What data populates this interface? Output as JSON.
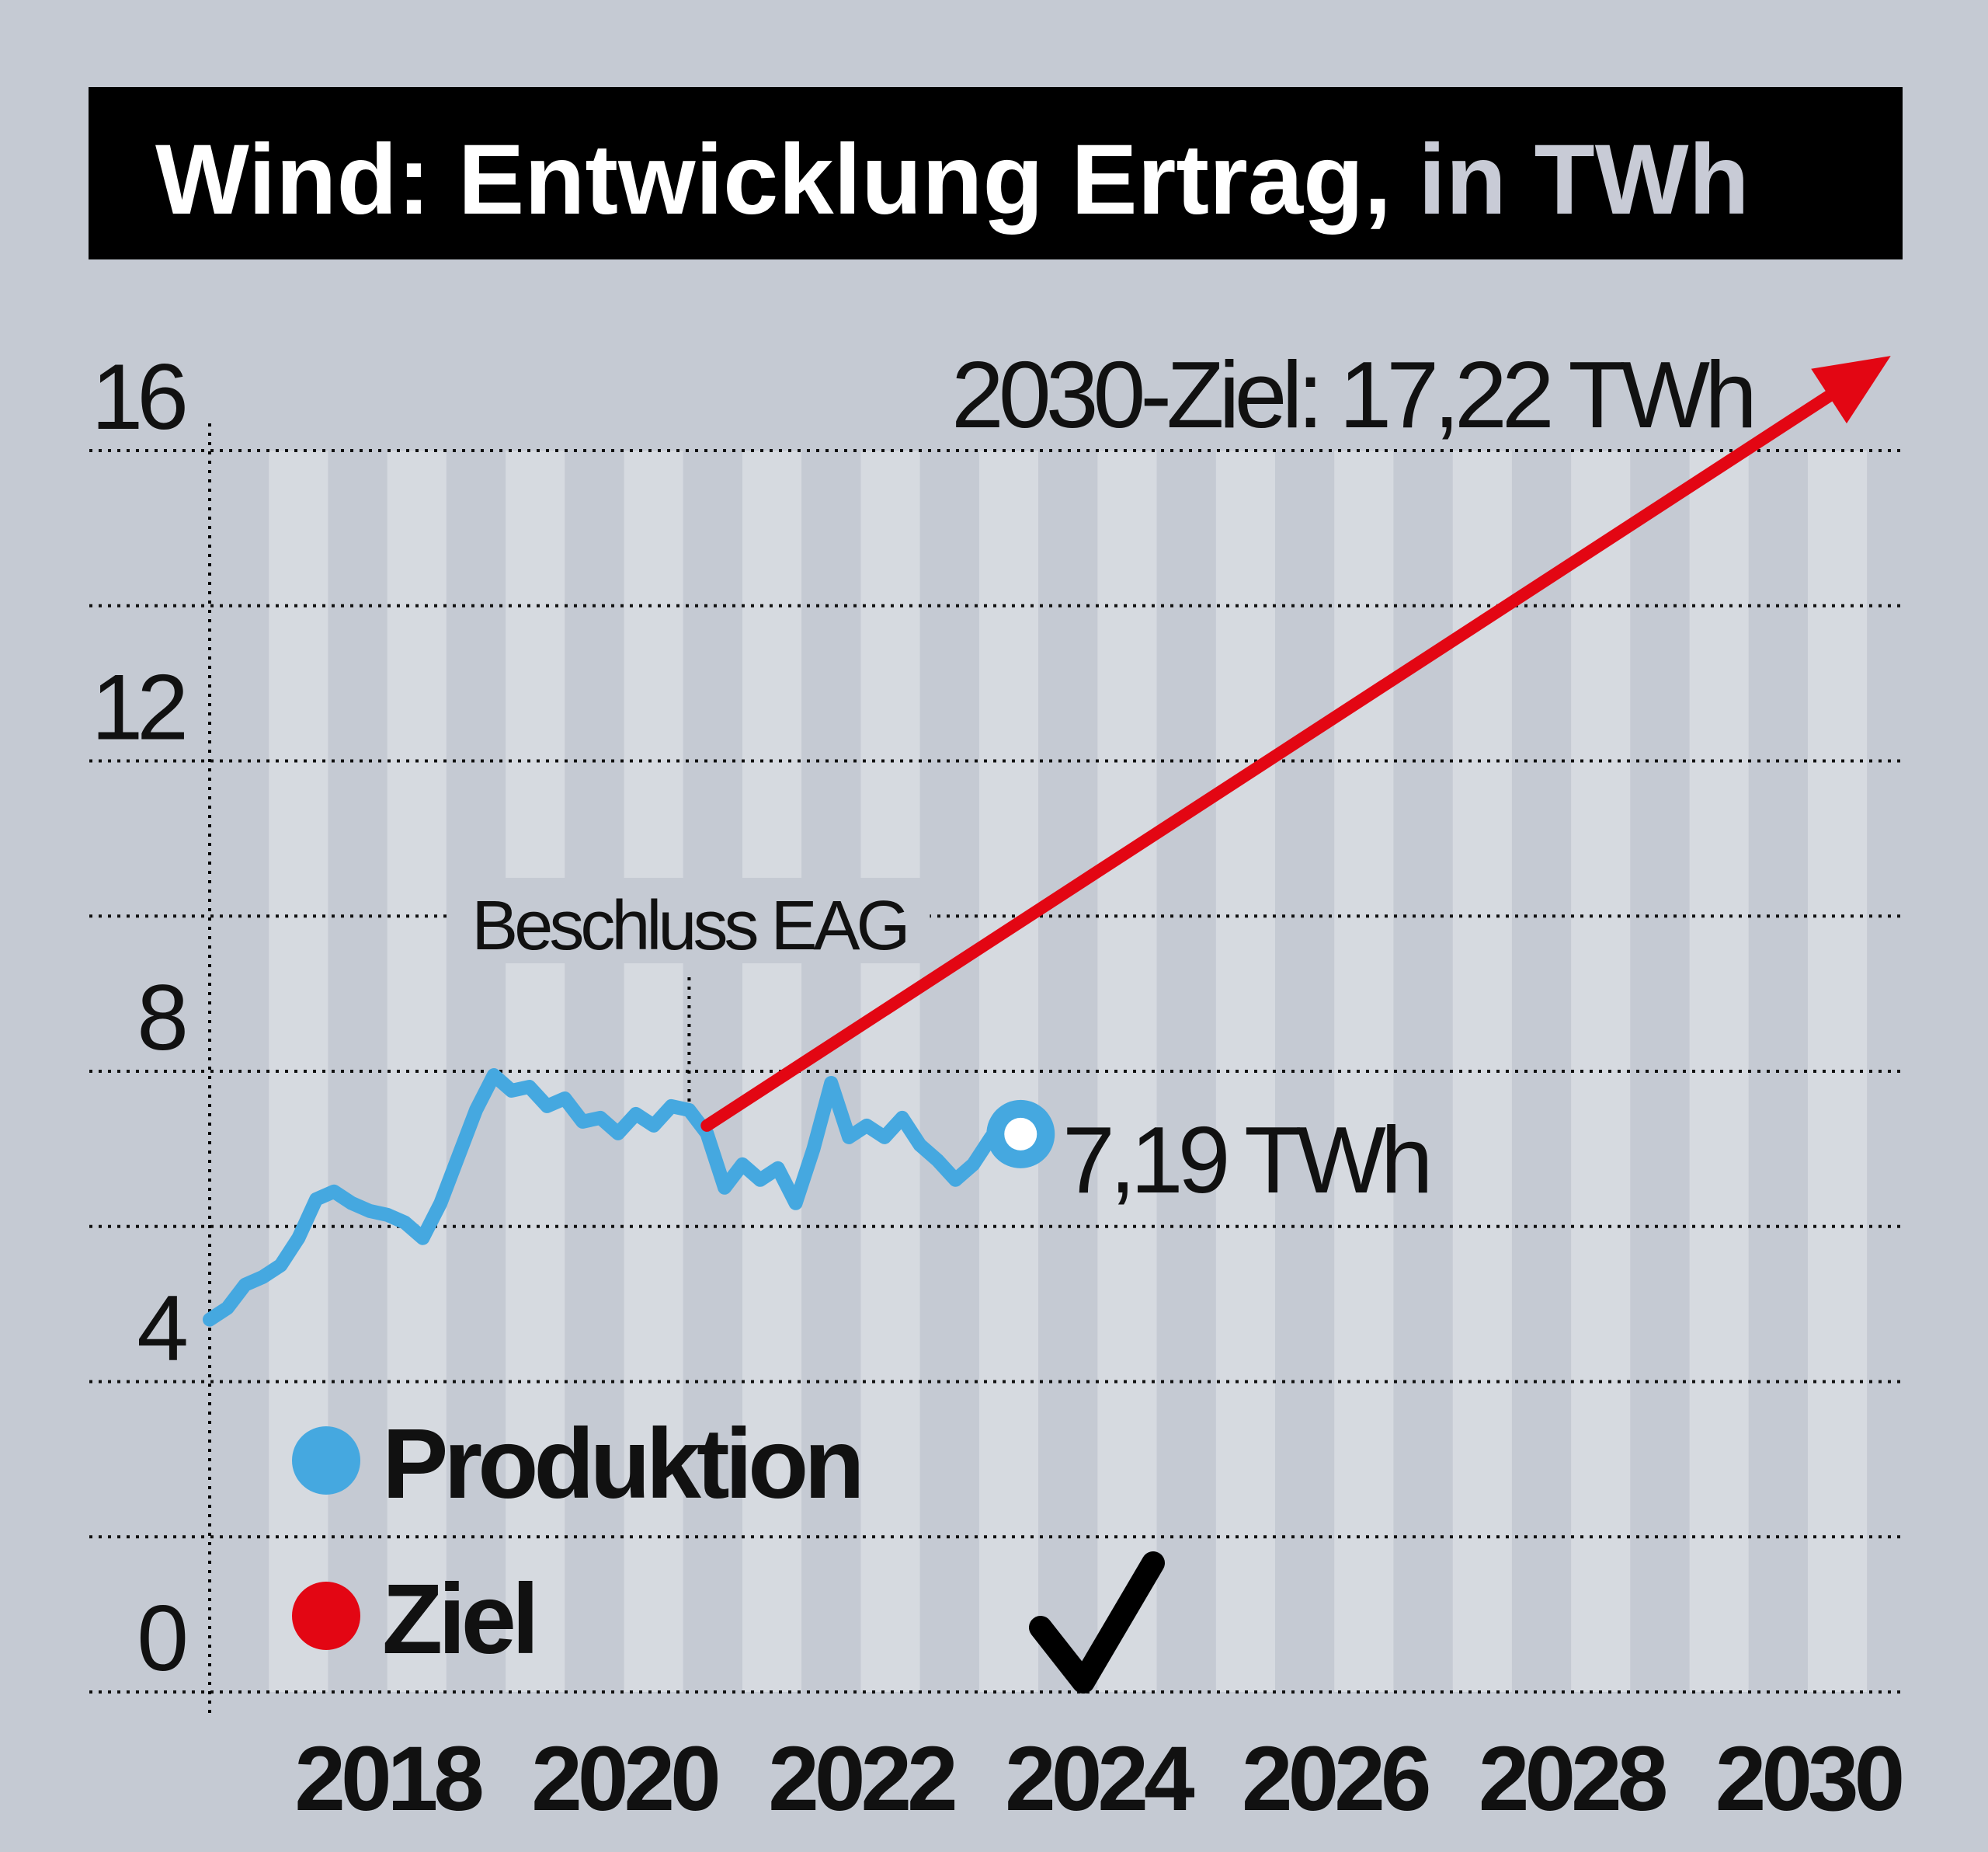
{
  "chart_data": {
    "type": "line",
    "title": "Wind: Entwicklung Ertrag,",
    "title_unit": "in TWh",
    "xlabel": "",
    "ylabel": "",
    "xlim": [
      2016.5,
      2030.8
    ],
    "ylim": [
      0,
      16
    ],
    "y_ticks": [
      0,
      4,
      8,
      12,
      16
    ],
    "x_ticks": [
      2018,
      2020,
      2022,
      2024,
      2026,
      2028,
      2030
    ],
    "grid": true,
    "legend": {
      "placement": "bottom-left",
      "items": [
        {
          "label": "Produktion",
          "color": "#45a8e0"
        },
        {
          "label": "Ziel",
          "color": "#e30613"
        }
      ]
    },
    "series": [
      {
        "name": "Produktion",
        "color": "#45a8e0",
        "x": [
          2016.5,
          2016.65,
          2016.8,
          2016.95,
          2017.1,
          2017.25,
          2017.4,
          2017.55,
          2017.7,
          2017.85,
          2018.0,
          2018.15,
          2018.3,
          2018.45,
          2018.6,
          2018.75,
          2018.9,
          2019.05,
          2019.2,
          2019.35,
          2019.5,
          2019.65,
          2019.8,
          2019.95,
          2020.1,
          2020.25,
          2020.4,
          2020.55,
          2020.7,
          2020.85,
          2021.0,
          2021.15,
          2021.3,
          2021.45,
          2021.6,
          2021.75,
          2021.9,
          2022.05,
          2022.2,
          2022.35,
          2022.5,
          2022.65,
          2022.8,
          2022.95,
          2023.1,
          2023.25,
          2023.35
        ],
        "values": [
          4.8,
          4.95,
          5.25,
          5.35,
          5.5,
          5.85,
          6.35,
          6.45,
          6.3,
          6.2,
          6.15,
          6.05,
          5.85,
          6.3,
          6.9,
          7.5,
          7.95,
          7.75,
          7.8,
          7.55,
          7.65,
          7.35,
          7.4,
          7.2,
          7.45,
          7.3,
          7.55,
          7.5,
          7.2,
          6.5,
          6.8,
          6.6,
          6.75,
          6.3,
          7.0,
          7.85,
          7.15,
          7.3,
          7.15,
          7.4,
          7.05,
          6.85,
          6.6,
          6.8,
          7.15,
          7.05,
          7.19
        ]
      },
      {
        "name": "Ziel",
        "color": "#e30613",
        "x": [
          2020.7,
          2030.7
        ],
        "values": [
          7.3,
          17.22
        ]
      }
    ],
    "annotations": {
      "target_label": "2030-Ziel: 17,22 TWh",
      "current_label": "7,19 TWh",
      "current_point": {
        "x": 2023.35,
        "y": 7.19
      },
      "event_label": "Beschluss EAG",
      "event_x": 2020.55
    }
  },
  "icons": {
    "checkmark": "check-icon"
  }
}
